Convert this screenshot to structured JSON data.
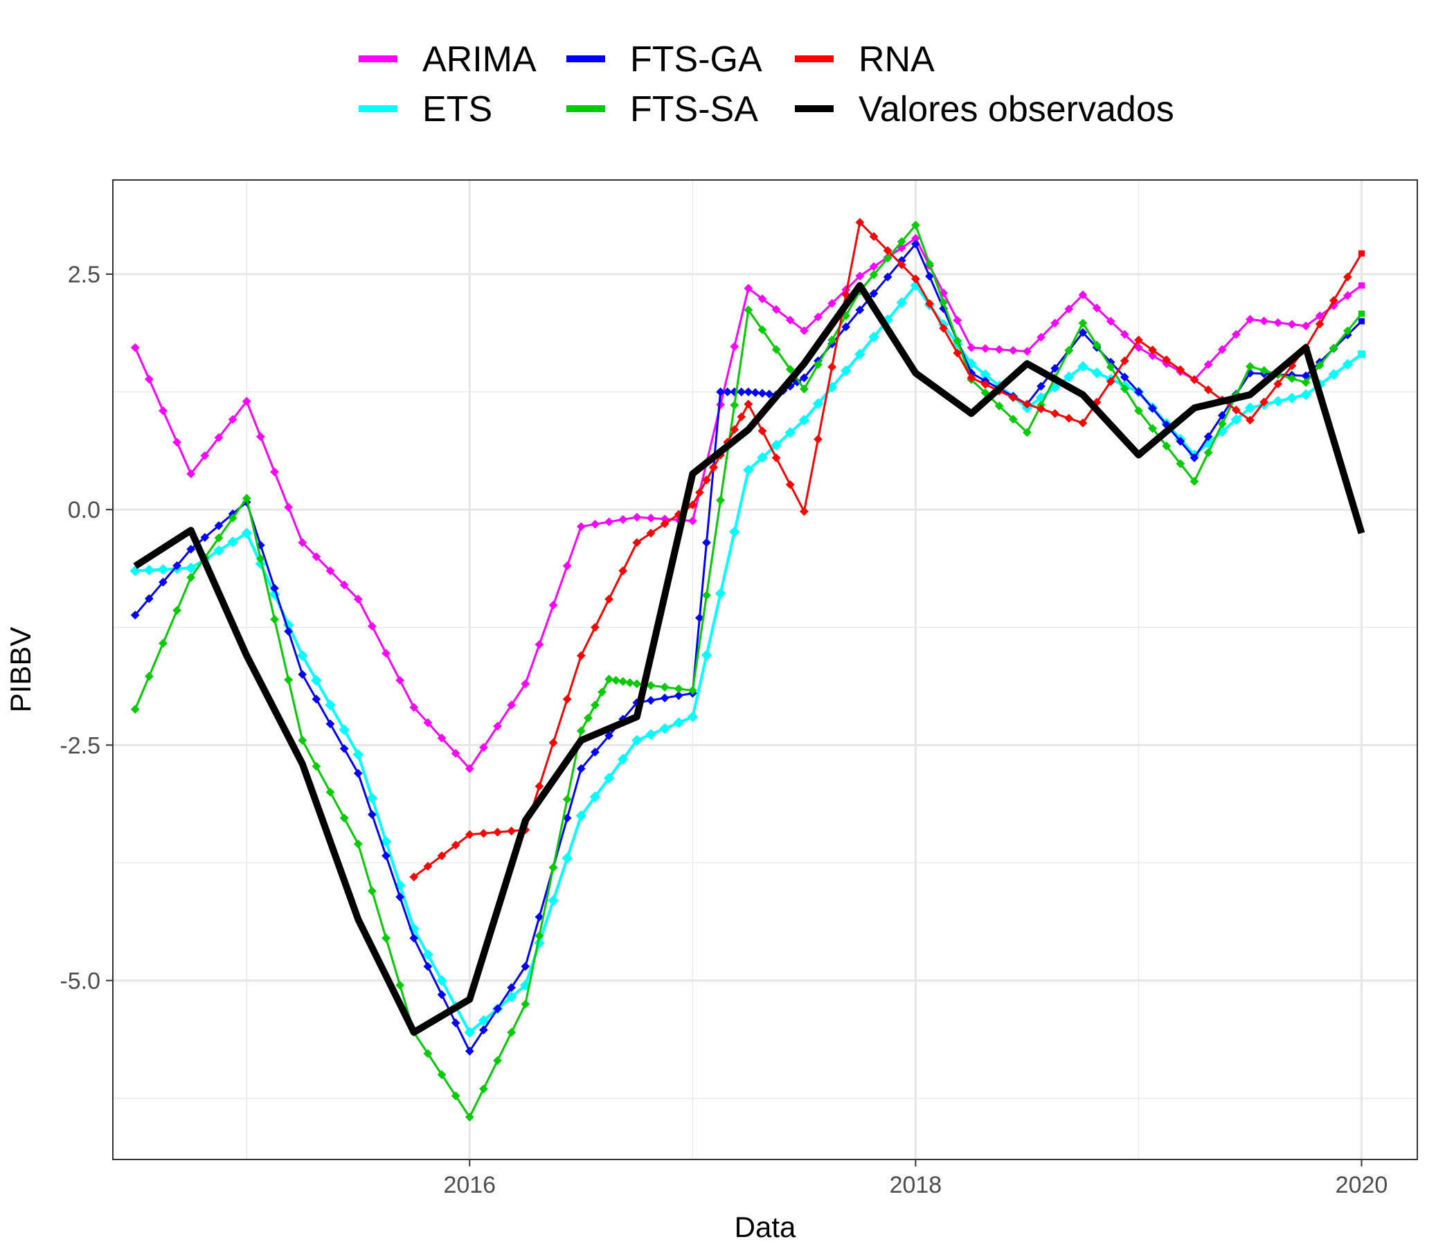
{
  "chart_data": {
    "type": "line",
    "title": "",
    "xlabel": "Data",
    "ylabel": "PIBBV",
    "xlim": [
      2014.4,
      2020.25
    ],
    "ylim": [
      -6.9,
      3.5
    ],
    "x_ticks": [
      2016,
      2018,
      2020
    ],
    "x_tick_labels": [
      "2016",
      "2018",
      "2020"
    ],
    "y_ticks": [
      -5.0,
      -2.5,
      0.0,
      2.5
    ],
    "y_tick_labels": [
      "-5.0",
      "-2.5",
      "0.0",
      "2.5"
    ],
    "grid": true,
    "legend_position": "top",
    "series": [
      {
        "name": "ARIMA",
        "color": "#ff00ff",
        "width": 3,
        "markers": true,
        "x": [
          2014.5,
          2014.75,
          2015.0,
          2015.25,
          2015.5,
          2015.75,
          2016.0,
          2016.25,
          2016.5,
          2016.75,
          2017.0,
          2017.25,
          2017.5,
          2017.75,
          2018.0,
          2018.25,
          2018.5,
          2018.75,
          2019.0,
          2019.25,
          2019.5,
          2019.75,
          2020.0
        ],
        "y": [
          1.72,
          0.38,
          1.15,
          -0.35,
          -0.95,
          -2.1,
          -2.75,
          -1.85,
          -0.18,
          -0.08,
          -0.12,
          2.35,
          1.9,
          2.48,
          2.88,
          1.72,
          1.68,
          2.28,
          1.72,
          1.38,
          2.02,
          1.95,
          2.38
        ]
      },
      {
        "name": "ETS",
        "color": "#00ffff",
        "width": 4,
        "markers": true,
        "x": [
          2014.5,
          2014.75,
          2015.0,
          2015.25,
          2015.5,
          2015.75,
          2016.0,
          2016.25,
          2016.5,
          2016.75,
          2017.0,
          2017.25,
          2017.5,
          2017.75,
          2018.0,
          2018.25,
          2018.5,
          2018.75,
          2019.0,
          2019.25,
          2019.5,
          2019.75,
          2020.0
        ],
        "y": [
          -0.65,
          -0.62,
          -0.25,
          -1.55,
          -2.6,
          -4.45,
          -5.55,
          -5.05,
          -3.25,
          -2.45,
          -2.2,
          0.42,
          0.95,
          1.65,
          2.38,
          1.55,
          1.08,
          1.52,
          1.25,
          0.58,
          1.08,
          1.22,
          1.65
        ]
      },
      {
        "name": "FTS-GA",
        "color": "#0000ff",
        "width": 3,
        "markers": true,
        "x": [
          2014.5,
          2014.75,
          2015.0,
          2015.25,
          2015.5,
          2015.75,
          2016.0,
          2016.25,
          2016.5,
          2016.75,
          2017.0,
          2017.125,
          2017.25,
          2017.375,
          2017.5,
          2017.75,
          2018.0,
          2018.25,
          2018.5,
          2018.75,
          2019.0,
          2019.25,
          2019.5,
          2019.75,
          2020.0
        ],
        "y": [
          -1.12,
          -0.42,
          0.08,
          -1.75,
          -2.8,
          -4.55,
          -5.75,
          -4.85,
          -2.75,
          -2.05,
          -1.95,
          1.25,
          1.25,
          1.22,
          1.4,
          2.12,
          2.82,
          1.45,
          1.12,
          1.88,
          1.25,
          0.55,
          1.45,
          1.42,
          2.0
        ]
      },
      {
        "name": "FTS-SA",
        "color": "#00cc00",
        "width": 3,
        "markers": true,
        "x": [
          2014.5,
          2014.75,
          2015.0,
          2015.25,
          2015.5,
          2015.75,
          2016.0,
          2016.25,
          2016.5,
          2016.625,
          2016.75,
          2017.0,
          2017.25,
          2017.5,
          2017.75,
          2018.0,
          2018.25,
          2018.5,
          2018.75,
          2019.0,
          2019.25,
          2019.5,
          2019.75,
          2020.0
        ],
        "y": [
          -2.12,
          -0.72,
          0.12,
          -2.45,
          -3.55,
          -5.55,
          -6.45,
          -5.25,
          -2.35,
          -1.8,
          -1.85,
          -1.92,
          2.12,
          1.28,
          2.32,
          3.02,
          1.38,
          0.82,
          1.98,
          1.05,
          0.3,
          1.52,
          1.35,
          2.08
        ]
      },
      {
        "name": "RNA",
        "color": "#ff0000",
        "width": 3,
        "markers": true,
        "x": [
          2015.75,
          2016.0,
          2016.25,
          2016.5,
          2016.75,
          2017.0,
          2017.125,
          2017.25,
          2017.5,
          2017.75,
          2018.0,
          2018.25,
          2018.5,
          2018.75,
          2019.0,
          2019.25,
          2019.5,
          2019.75,
          2020.0
        ],
        "y": [
          -3.9,
          -3.45,
          -3.4,
          -1.55,
          -0.35,
          0.05,
          0.58,
          1.12,
          -0.02,
          3.05,
          2.45,
          1.4,
          1.12,
          0.92,
          1.8,
          1.38,
          0.95,
          1.72,
          2.72
        ]
      },
      {
        "name": "Valores observados",
        "color": "#000000",
        "width": 10,
        "markers": false,
        "x": [
          2014.5,
          2014.75,
          2015.0,
          2015.25,
          2015.5,
          2015.75,
          2016.0,
          2016.25,
          2016.5,
          2016.75,
          2017.0,
          2017.25,
          2017.5,
          2017.75,
          2018.0,
          2018.25,
          2018.5,
          2018.75,
          2019.0,
          2019.25,
          2019.5,
          2019.75,
          2020.0
        ],
        "y": [
          -0.6,
          -0.22,
          -1.55,
          -2.7,
          -4.35,
          -5.55,
          -5.2,
          -3.3,
          -2.45,
          -2.2,
          0.38,
          0.85,
          1.55,
          2.38,
          1.45,
          1.02,
          1.55,
          1.22,
          0.58,
          1.08,
          1.22,
          1.72,
          -0.25
        ]
      }
    ]
  }
}
